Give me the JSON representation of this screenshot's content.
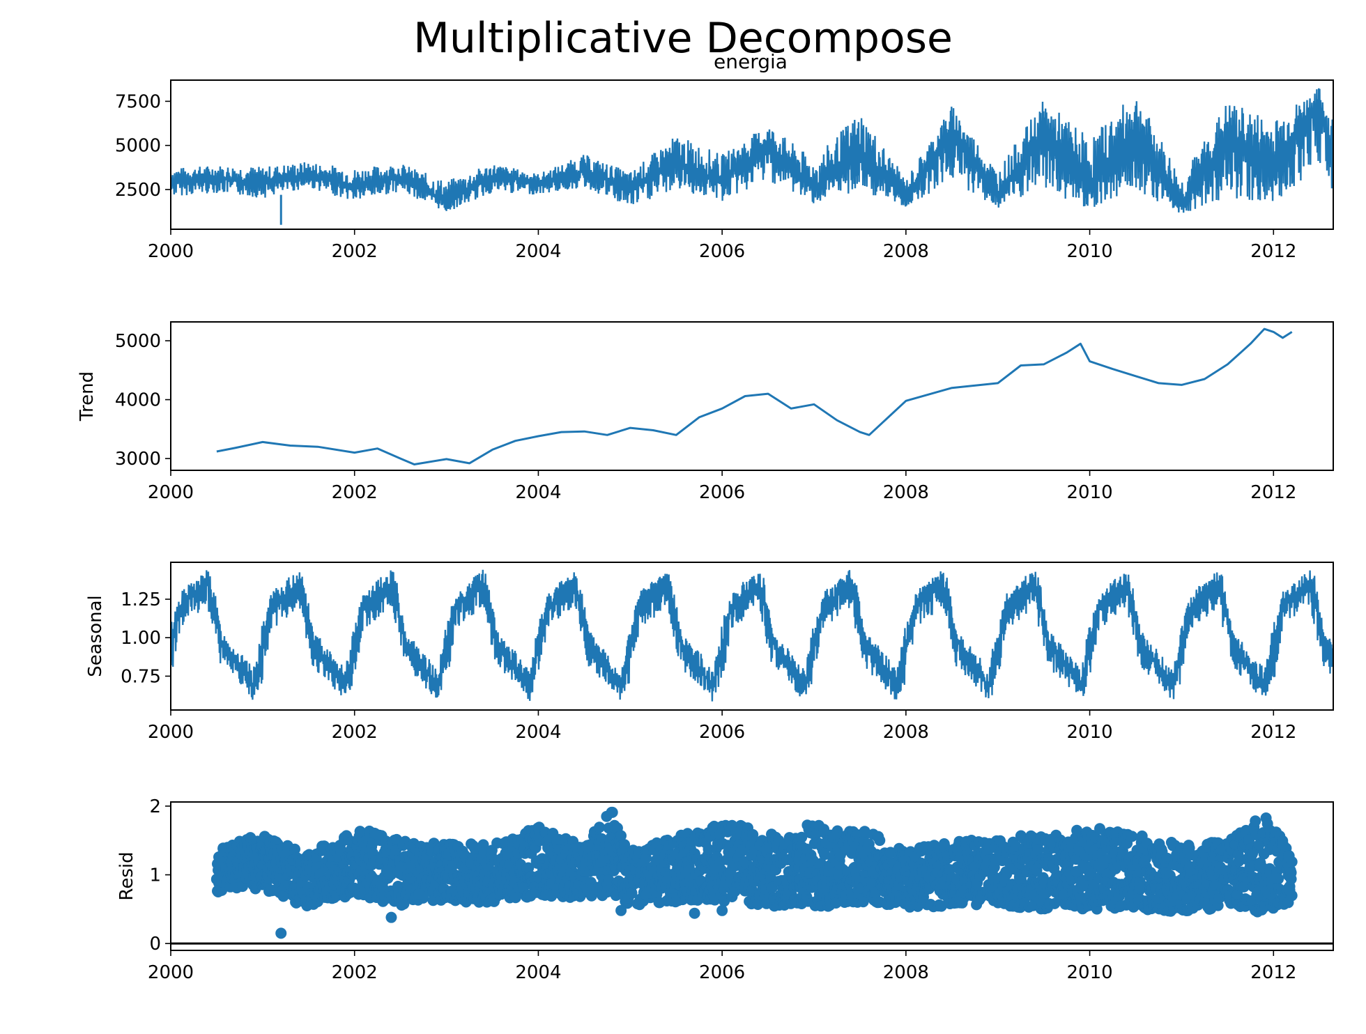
{
  "figure": {
    "suptitle": "Multiplicative Decompose",
    "series_color": "#1f77b4"
  },
  "chart_data": [
    {
      "type": "line",
      "id": "observed",
      "title": "energia",
      "ylabel": "",
      "xlim": [
        2000.0,
        2012.65
      ],
      "ylim": [
        250,
        8700
      ],
      "x_ticks": [
        2000,
        2002,
        2004,
        2006,
        2008,
        2010,
        2012
      ],
      "y_ticks": [
        2500,
        5000,
        7500
      ],
      "x": [
        2000.0,
        2000.5,
        2001.0,
        2001.5,
        2002.0,
        2002.5,
        2003.0,
        2003.5,
        2004.0,
        2004.5,
        2005.0,
        2005.5,
        2006.0,
        2006.5,
        2007.0,
        2007.5,
        2008.0,
        2008.5,
        2009.0,
        2009.5,
        2010.0,
        2010.5,
        2011.0,
        2011.5,
        2012.0,
        2012.5,
        2012.65
      ],
      "center": [
        3000,
        3100,
        2900,
        3300,
        2700,
        3200,
        1800,
        3200,
        2900,
        3500,
        2600,
        4000,
        3000,
        5000,
        2500,
        4400,
        2000,
        5800,
        2200,
        5500,
        2500,
        5800,
        1600,
        5400,
        4000,
        7400,
        4000
      ],
      "low": [
        2100,
        2300,
        2000,
        2600,
        1800,
        2400,
        1200,
        2300,
        2200,
        2600,
        1400,
        2500,
        1800,
        3000,
        1700,
        2400,
        1500,
        3000,
        1400,
        2400,
        1400,
        2500,
        1100,
        2000,
        1500,
        4000,
        2300
      ],
      "high": [
        3700,
        3900,
        3800,
        4100,
        3700,
        4000,
        3000,
        4000,
        3400,
        4500,
        3500,
        5600,
        4500,
        6200,
        4200,
        7000,
        3100,
        7300,
        3600,
        7600,
        5500,
        8000,
        3200,
        7500,
        6500,
        8300,
        6600
      ],
      "annotations": [
        {
          "x": 2001.2,
          "y": 500,
          "label": ""
        }
      ]
    },
    {
      "type": "line",
      "id": "trend",
      "title": "",
      "ylabel": "Trend",
      "xlim": [
        2000.0,
        2012.65
      ],
      "ylim": [
        2800,
        5320
      ],
      "x_ticks": [
        2000,
        2002,
        2004,
        2006,
        2008,
        2010,
        2012
      ],
      "y_ticks": [
        3000,
        4000,
        5000
      ],
      "x": [
        2000.5,
        2000.7,
        2001.0,
        2001.3,
        2001.6,
        2002.0,
        2002.25,
        2002.5,
        2002.65,
        2003.0,
        2003.25,
        2003.5,
        2003.75,
        2004.0,
        2004.25,
        2004.5,
        2004.75,
        2005.0,
        2005.25,
        2005.5,
        2005.75,
        2006.0,
        2006.25,
        2006.5,
        2006.75,
        2007.0,
        2007.25,
        2007.5,
        2007.6,
        2008.0,
        2008.5,
        2009.0,
        2009.25,
        2009.5,
        2009.75,
        2009.9,
        2010.0,
        2010.25,
        2010.5,
        2010.75,
        2011.0,
        2011.25,
        2011.5,
        2011.75,
        2011.9,
        2012.0,
        2012.1,
        2012.2
      ],
      "values": [
        3120,
        3180,
        3280,
        3220,
        3200,
        3100,
        3170,
        3000,
        2900,
        2990,
        2920,
        3150,
        3300,
        3380,
        3450,
        3460,
        3400,
        3520,
        3480,
        3400,
        3700,
        3850,
        4060,
        4100,
        3850,
        3920,
        3650,
        3450,
        3400,
        3980,
        4200,
        4280,
        4580,
        4600,
        4800,
        4950,
        4650,
        4520,
        4400,
        4280,
        4250,
        4350,
        4600,
        4950,
        5200,
        5150,
        5050,
        5150
      ]
    },
    {
      "type": "line",
      "id": "seasonal",
      "title": "",
      "ylabel": "Seasonal",
      "xlim": [
        2000.0,
        2012.65
      ],
      "ylim": [
        0.53,
        1.49
      ],
      "x_ticks": [
        2000,
        2002,
        2004,
        2006,
        2008,
        2010,
        2012
      ],
      "y_ticks": [
        0.75,
        1.0,
        1.25
      ],
      "period_years": 1.0,
      "cycle_phase": [
        0.0,
        0.1,
        0.3,
        0.4,
        0.45,
        0.55,
        0.7,
        0.9,
        1.0
      ],
      "cycle_center": [
        0.95,
        1.2,
        1.3,
        1.36,
        1.25,
        0.98,
        0.85,
        0.68,
        0.95
      ],
      "cycle_low": [
        0.7,
        1.05,
        1.15,
        1.2,
        1.05,
        0.8,
        0.72,
        0.58,
        0.7
      ],
      "cycle_high": [
        1.1,
        1.3,
        1.4,
        1.45,
        1.4,
        1.05,
        0.95,
        0.8,
        1.1
      ]
    },
    {
      "type": "scatter",
      "id": "resid",
      "title": "",
      "ylabel": "Resid",
      "xlim": [
        2000.0,
        2012.65
      ],
      "ylim": [
        -0.1,
        2.06
      ],
      "x_ticks": [
        2000,
        2002,
        2004,
        2006,
        2008,
        2010,
        2012
      ],
      "y_ticks": [
        0,
        1,
        2
      ],
      "baseline": 0,
      "x": [
        2000.5,
        2001.0,
        2001.5,
        2002.0,
        2002.5,
        2003.0,
        2003.5,
        2004.0,
        2004.5,
        2004.8,
        2005.0,
        2005.5,
        2006.0,
        2006.5,
        2007.0,
        2007.5,
        2008.0,
        2008.5,
        2009.0,
        2009.5,
        2010.0,
        2010.5,
        2011.0,
        2011.5,
        2011.9,
        2012.2
      ],
      "center": [
        1.0,
        1.15,
        0.85,
        1.1,
        0.95,
        1.1,
        0.9,
        1.15,
        0.95,
        1.3,
        0.9,
        1.0,
        1.05,
        0.95,
        1.1,
        0.95,
        0.9,
        1.0,
        1.0,
        0.95,
        1.0,
        1.0,
        0.95,
        1.0,
        1.05,
        1.0
      ],
      "low": [
        0.75,
        0.8,
        0.5,
        0.7,
        0.55,
        0.6,
        0.6,
        0.7,
        0.65,
        0.7,
        0.55,
        0.6,
        0.6,
        0.55,
        0.5,
        0.6,
        0.5,
        0.55,
        0.55,
        0.5,
        0.5,
        0.5,
        0.45,
        0.5,
        0.45,
        0.6
      ],
      "high": [
        1.4,
        1.6,
        1.3,
        1.7,
        1.5,
        1.45,
        1.45,
        1.7,
        1.45,
        1.95,
        1.35,
        1.55,
        1.8,
        1.6,
        1.75,
        1.7,
        1.35,
        1.5,
        1.55,
        1.6,
        1.7,
        1.6,
        1.45,
        1.5,
        1.9,
        1.3
      ],
      "outliers": [
        {
          "x": 2001.2,
          "y": 0.15
        },
        {
          "x": 2002.4,
          "y": 0.38
        },
        {
          "x": 2002.7,
          "y": 0.72
        },
        {
          "x": 2004.9,
          "y": 0.48
        },
        {
          "x": 2005.7,
          "y": 0.44
        },
        {
          "x": 2006.0,
          "y": 0.48
        }
      ]
    }
  ]
}
